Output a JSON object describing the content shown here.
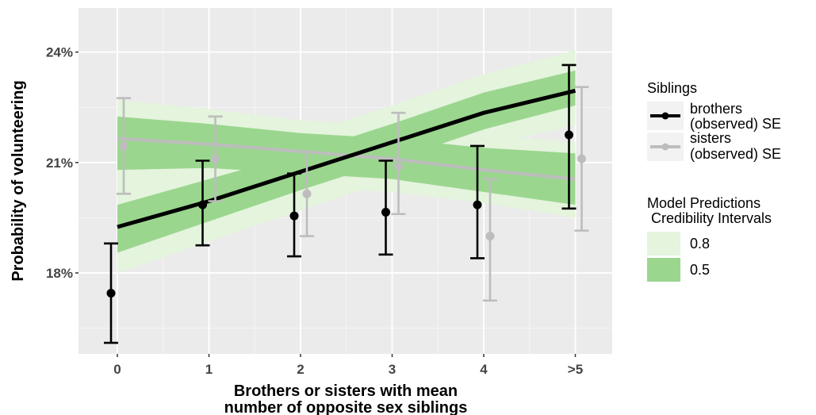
{
  "chart_data": {
    "type": "line",
    "title": "",
    "xlabel_lines": [
      "Brothers or sisters with mean",
      "number of opposite sex siblings"
    ],
    "ylabel": "Probability of volunteering",
    "x_categories": [
      "0",
      "1",
      "2",
      "3",
      "4",
      ">5"
    ],
    "y_ticks": [
      {
        "value": 0.18,
        "label": "18%"
      },
      {
        "value": 0.21,
        "label": "21%"
      },
      {
        "value": 0.24,
        "label": "24%"
      }
    ],
    "ylim": [
      0.158,
      0.252
    ],
    "grid": true,
    "legend_position": "right",
    "legend": {
      "siblings": {
        "title": "Siblings",
        "items": [
          {
            "lines": [
              "brothers",
              "(observed) SE"
            ],
            "color": "#000000"
          },
          {
            "lines": [
              "sisters",
              "(observed) SE"
            ],
            "color": "#bdbdbd"
          }
        ]
      },
      "intervals": {
        "title_lines": [
          "Model Predictions",
          " Credibility Intervals"
        ],
        "items": [
          {
            "label": "0.8",
            "color": "#e4f4dd"
          },
          {
            "label": "0.5",
            "color": "#9bd68f"
          }
        ]
      }
    },
    "series": [
      {
        "key": "brothers",
        "color": "#000000",
        "prediction": [
          0.1925,
          0.1995,
          0.2075,
          0.2155,
          0.2235,
          0.2295
        ],
        "ci80_lower": [
          0.18,
          0.1885,
          0.197,
          0.2055,
          0.2145,
          0.22
        ],
        "ci80_upper": [
          0.2045,
          0.2105,
          0.2175,
          0.2255,
          0.234,
          0.2405
        ],
        "ci50_lower": [
          0.1855,
          0.194,
          0.2025,
          0.2105,
          0.219,
          0.2255
        ],
        "ci50_upper": [
          0.1985,
          0.2055,
          0.2125,
          0.2205,
          0.229,
          0.235
        ],
        "observed": [
          0.1745,
          0.1985,
          0.1955,
          0.1965,
          0.1985,
          0.2175
        ],
        "se_lower": [
          0.161,
          0.1875,
          0.1845,
          0.185,
          0.184,
          0.1975
        ],
        "se_upper": [
          0.188,
          0.2105,
          0.207,
          0.2105,
          0.2145,
          0.2365
        ]
      },
      {
        "key": "sisters",
        "color": "#bdbdbd",
        "prediction": [
          0.2165,
          0.215,
          0.213,
          0.211,
          0.208,
          0.2055
        ],
        "ci80_lower": [
          0.2045,
          0.205,
          0.2035,
          0.202,
          0.199,
          0.195
        ],
        "ci80_upper": [
          0.227,
          0.2245,
          0.2215,
          0.22,
          0.2175,
          0.2155
        ],
        "ci50_lower": [
          0.208,
          0.2085,
          0.207,
          0.2055,
          0.202,
          0.1985
        ],
        "ci50_upper": [
          0.2225,
          0.2205,
          0.218,
          0.2165,
          0.214,
          0.2125
        ],
        "observed": [
          0.2145,
          0.211,
          0.2015,
          0.209,
          0.19,
          0.211
        ],
        "se_lower": [
          0.2015,
          0.1995,
          0.19,
          0.196,
          0.1725,
          0.1915
        ],
        "se_upper": [
          0.2275,
          0.2225,
          0.213,
          0.2235,
          0.2055,
          0.2305
        ]
      }
    ]
  }
}
